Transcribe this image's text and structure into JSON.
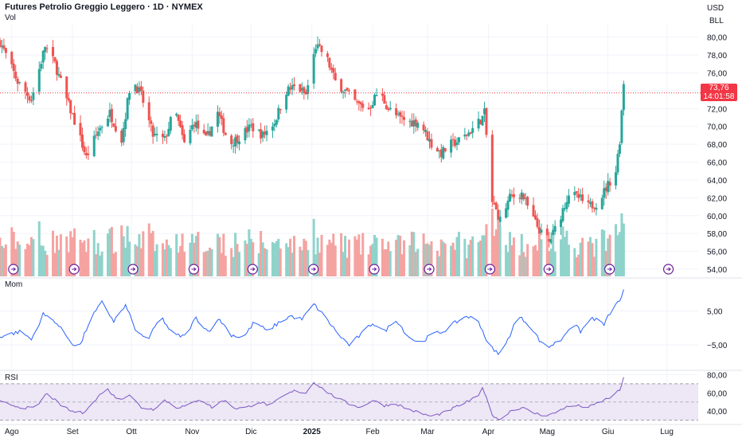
{
  "header": {
    "title": "Futures Petrolio Greggio Leggero · 1D · NYMEX",
    "vol_label": "Vol",
    "currency": "USD",
    "unit": "BLL"
  },
  "price_badge": {
    "price": "73,76",
    "countdown": "14:01:58"
  },
  "colors": {
    "up": "#26a69a",
    "down": "#ef5350",
    "vol_up": "#8fd3cb",
    "vol_down": "#f5a3a1",
    "mom_line": "#2962ff",
    "rsi_line": "#7e57c2",
    "rsi_band": "#ede7f6",
    "badge": "#f23645",
    "event_icon": "#6a1b9a"
  },
  "chart_data": [
    {
      "type": "candlestick",
      "title": "Futures Petrolio Greggio Leggero · 1D · NYMEX",
      "y_unit": "USD / BLL",
      "ylim": [
        53.2,
        81.4
      ],
      "y_ticks": [
        "80,00",
        "78,00",
        "76,00",
        "74,00",
        "72,00",
        "70,00",
        "68,00",
        "66,00",
        "64,00",
        "62,00",
        "60,00",
        "58,00",
        "56,00",
        "54,00"
      ],
      "y_tick_values": [
        80,
        78,
        76,
        74,
        72,
        70,
        68,
        66,
        64,
        62,
        60,
        58,
        56,
        54
      ],
      "last_price": 73.76,
      "x_labels": [
        "Ago",
        "Set",
        "Ott",
        "Nov",
        "Dic",
        "2025",
        "Feb",
        "Mar",
        "Apr",
        "Mag",
        "Giu",
        "Lug"
      ],
      "x_label_days": [
        0,
        31,
        61,
        92,
        122,
        153,
        184,
        212,
        243,
        273,
        304,
        334
      ],
      "day_range": [
        -6,
        350
      ],
      "grid": true,
      "anchors": [
        [
          -6,
          79.5
        ],
        [
          3,
          75.0
        ],
        [
          10,
          73.0
        ],
        [
          17,
          79.0
        ],
        [
          22,
          77.0
        ],
        [
          28,
          73.0
        ],
        [
          33,
          70.0
        ],
        [
          38,
          66.5
        ],
        [
          44,
          69.5
        ],
        [
          50,
          71.5
        ],
        [
          56,
          68.5
        ],
        [
          61,
          75.5
        ],
        [
          66,
          73.5
        ],
        [
          72,
          69.0
        ],
        [
          78,
          68.5
        ],
        [
          83,
          72.0
        ],
        [
          88,
          68.0
        ],
        [
          93,
          70.5
        ],
        [
          99,
          68.5
        ],
        [
          105,
          71.5
        ],
        [
          111,
          68.0
        ],
        [
          117,
          69.0
        ],
        [
          122,
          70.0
        ],
        [
          128,
          69.0
        ],
        [
          134,
          70.5
        ],
        [
          140,
          74.0
        ],
        [
          145,
          74.5
        ],
        [
          150,
          73.5
        ],
        [
          155,
          79.0
        ],
        [
          160,
          78.0
        ],
        [
          165,
          75.0
        ],
        [
          170,
          74.0
        ],
        [
          176,
          72.5
        ],
        [
          182,
          72.0
        ],
        [
          187,
          74.0
        ],
        [
          192,
          72.0
        ],
        [
          197,
          71.0
        ],
        [
          203,
          70.5
        ],
        [
          208,
          70.5
        ],
        [
          214,
          68.0
        ],
        [
          219,
          67.0
        ],
        [
          224,
          68.0
        ],
        [
          229,
          68.5
        ],
        [
          234,
          69.5
        ],
        [
          240,
          71.0
        ],
        [
          241,
          71.5
        ],
        [
          243,
          66.5
        ],
        [
          245,
          61.5
        ],
        [
          249,
          59.5
        ],
        [
          254,
          62.0
        ],
        [
          260,
          62.5
        ],
        [
          265,
          60.0
        ],
        [
          270,
          58.0
        ],
        [
          274,
          57.0
        ],
        [
          279,
          59.5
        ],
        [
          284,
          62.5
        ],
        [
          289,
          62.0
        ],
        [
          294,
          61.0
        ],
        [
          299,
          61.5
        ],
        [
          304,
          63.5
        ],
        [
          308,
          65.0
        ],
        [
          310,
          68.5
        ],
        [
          312,
          75.0
        ],
        [
          314,
          73.76
        ]
      ],
      "volume_relative": "0-1 of max volume, teal = up day, red = down day"
    },
    {
      "type": "line",
      "name": "Mom",
      "ylim": [
        -12,
        14
      ],
      "y_ticks": [
        "5,00",
        "−5,00"
      ],
      "y_tick_values": [
        5,
        -5
      ],
      "anchors": [
        [
          -6,
          -2.5
        ],
        [
          5,
          -1.0
        ],
        [
          10,
          -3.5
        ],
        [
          16,
          4.0
        ],
        [
          22,
          2.0
        ],
        [
          28,
          -2.5
        ],
        [
          34,
          -6.5
        ],
        [
          40,
          2.5
        ],
        [
          46,
          7.5
        ],
        [
          52,
          2.0
        ],
        [
          58,
          6.5
        ],
        [
          64,
          -1.5
        ],
        [
          70,
          -3.0
        ],
        [
          76,
          3.5
        ],
        [
          82,
          -2.0
        ],
        [
          88,
          -2.5
        ],
        [
          94,
          3.0
        ],
        [
          100,
          -1.0
        ],
        [
          106,
          2.5
        ],
        [
          112,
          -2.0
        ],
        [
          118,
          -3.0
        ],
        [
          124,
          2.0
        ],
        [
          130,
          -1.0
        ],
        [
          136,
          1.5
        ],
        [
          142,
          3.5
        ],
        [
          148,
          2.5
        ],
        [
          154,
          7.0
        ],
        [
          160,
          3.0
        ],
        [
          166,
          -1.5
        ],
        [
          172,
          -5.0
        ],
        [
          178,
          -2.0
        ],
        [
          184,
          1.5
        ],
        [
          190,
          -1.0
        ],
        [
          196,
          2.5
        ],
        [
          202,
          -2.5
        ],
        [
          208,
          -4.5
        ],
        [
          214,
          -2.0
        ],
        [
          220,
          -1.0
        ],
        [
          226,
          1.5
        ],
        [
          232,
          3.5
        ],
        [
          238,
          2.0
        ],
        [
          242,
          -3.5
        ],
        [
          246,
          -7.0
        ],
        [
          250,
          -7.5
        ],
        [
          254,
          -2.0
        ],
        [
          258,
          3.5
        ],
        [
          264,
          1.0
        ],
        [
          270,
          -4.5
        ],
        [
          274,
          -5.5
        ],
        [
          280,
          -3.5
        ],
        [
          286,
          1.5
        ],
        [
          290,
          -1.0
        ],
        [
          296,
          3.0
        ],
        [
          302,
          1.0
        ],
        [
          306,
          5.5
        ],
        [
          310,
          8.0
        ],
        [
          313,
          12.5
        ],
        [
          314,
          11.5
        ]
      ]
    },
    {
      "type": "line",
      "name": "RSI",
      "ylim": [
        27,
        83
      ],
      "y_ticks": [
        "80,00",
        "60,00",
        "40,00"
      ],
      "y_tick_values": [
        80,
        60,
        40
      ],
      "band": [
        30,
        70
      ],
      "midline": 50,
      "anchors": [
        [
          -6,
          50.0
        ],
        [
          5,
          44.0
        ],
        [
          12,
          43.0
        ],
        [
          18,
          60.0
        ],
        [
          24,
          48.0
        ],
        [
          30,
          40.0
        ],
        [
          36,
          38.0
        ],
        [
          42,
          50.0
        ],
        [
          48,
          66.0
        ],
        [
          54,
          52.0
        ],
        [
          60,
          58.0
        ],
        [
          66,
          44.0
        ],
        [
          72,
          42.0
        ],
        [
          78,
          52.0
        ],
        [
          84,
          44.0
        ],
        [
          90,
          46.0
        ],
        [
          96,
          54.0
        ],
        [
          102,
          44.0
        ],
        [
          108,
          52.0
        ],
        [
          114,
          43.0
        ],
        [
          120,
          44.0
        ],
        [
          126,
          50.0
        ],
        [
          132,
          46.0
        ],
        [
          138,
          56.0
        ],
        [
          144,
          62.0
        ],
        [
          150,
          60.0
        ],
        [
          154,
          72.0
        ],
        [
          160,
          62.0
        ],
        [
          166,
          54.0
        ],
        [
          172,
          48.0
        ],
        [
          178,
          44.0
        ],
        [
          184,
          52.0
        ],
        [
          190,
          46.0
        ],
        [
          196,
          48.0
        ],
        [
          202,
          42.0
        ],
        [
          208,
          38.0
        ],
        [
          214,
          34.0
        ],
        [
          220,
          38.0
        ],
        [
          226,
          44.0
        ],
        [
          232,
          50.0
        ],
        [
          238,
          56.0
        ],
        [
          240,
          67.0
        ],
        [
          242,
          54.0
        ],
        [
          245,
          36.0
        ],
        [
          249,
          30.0
        ],
        [
          254,
          40.0
        ],
        [
          260,
          44.0
        ],
        [
          266,
          38.0
        ],
        [
          272,
          35.0
        ],
        [
          276,
          37.0
        ],
        [
          282,
          44.0
        ],
        [
          288,
          46.0
        ],
        [
          294,
          44.0
        ],
        [
          300,
          50.0
        ],
        [
          306,
          56.0
        ],
        [
          310,
          63.0
        ],
        [
          312,
          76.0
        ],
        [
          314,
          79.0
        ]
      ]
    }
  ]
}
